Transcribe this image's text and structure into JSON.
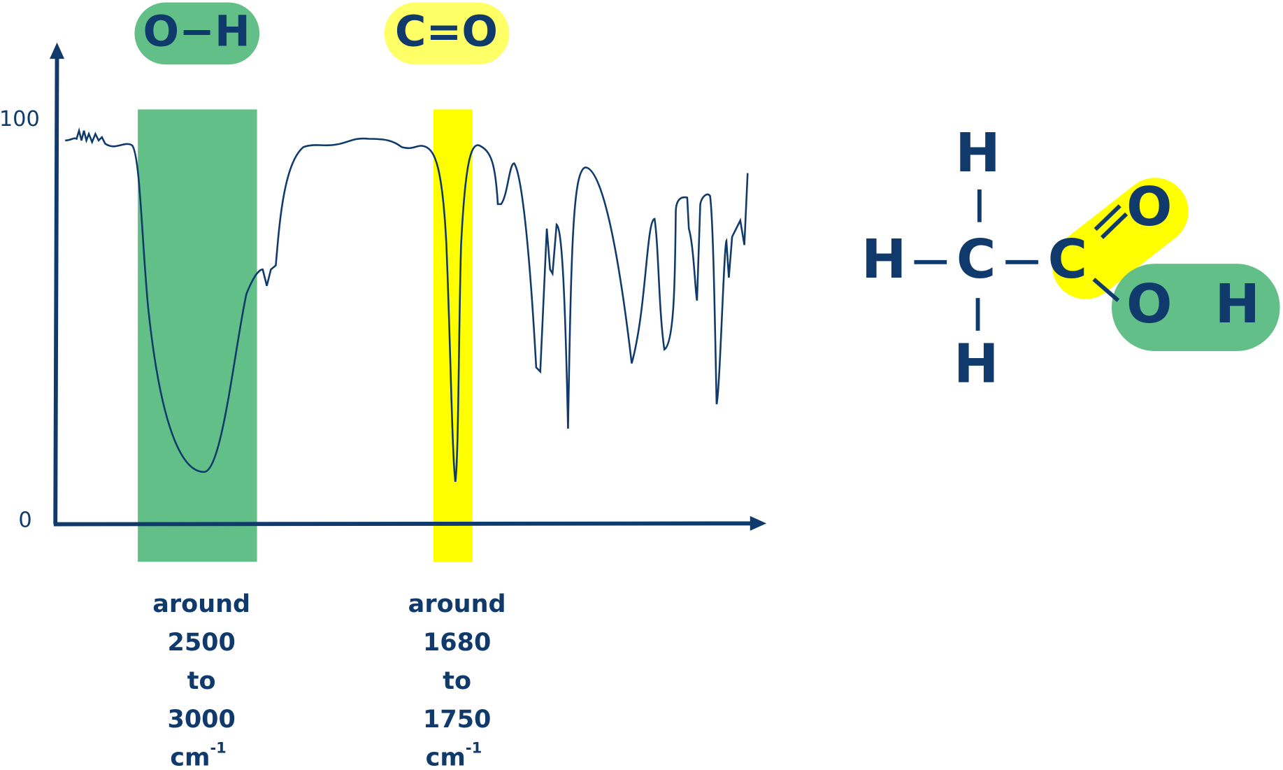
{
  "bands": [
    {
      "name": "O−H",
      "lines": [
        "around",
        "2500",
        "to",
        "3000"
      ],
      "unit": "cm",
      "exponent": "-1"
    },
    {
      "name": "C=O",
      "lines": [
        "around",
        "1680",
        "to",
        "1750"
      ],
      "unit": "cm",
      "exponent": "-1"
    }
  ],
  "axis": {
    "top_label": "100",
    "bottom_label": "0"
  },
  "molecule": {
    "atoms": [
      "H",
      "H",
      "C",
      "C",
      "O",
      "O",
      "H",
      "H"
    ]
  }
}
